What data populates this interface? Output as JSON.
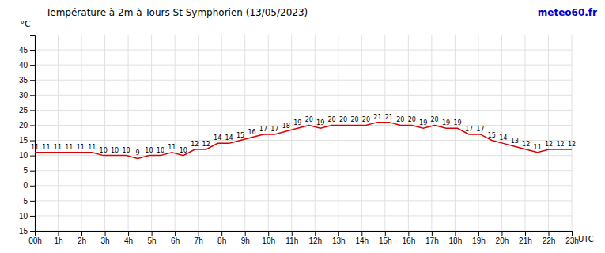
{
  "chart_data": {
    "type": "line",
    "title": "Température à 2m à Tours St Symphorien (13/05/2023)",
    "ylabel": "°C",
    "xlabel": "UTC",
    "annotations": [
      {
        "text": "meteo60.fr",
        "color": "#0000cc"
      }
    ],
    "color": "#dd0000",
    "x": [
      0,
      0.489362,
      0.978723,
      1.468085,
      1.957447,
      2.446809,
      2.93617,
      3.425532,
      3.914894,
      4.404255,
      4.893617,
      5.382979,
      5.87234,
      6.361702,
      6.851064,
      7.340426,
      7.829787,
      8.319149,
      8.808511,
      9.297872,
      9.787234,
      10.276596,
      10.765957,
      11.255319,
      11.744681,
      12.234043,
      12.723404,
      13.212766,
      13.702128,
      14.191489,
      14.680851,
      15.170213,
      15.659574,
      16.148936,
      16.638298,
      17.12766,
      17.617021,
      18.106383,
      18.595745,
      19.085106,
      19.574468,
      20.06383,
      20.553191,
      21.042553,
      21.531915,
      22.021277,
      22.510638,
      23
    ],
    "values": [
      11,
      11,
      11,
      11,
      11,
      11,
      10,
      10,
      10,
      9,
      10,
      10,
      11,
      10,
      12,
      12,
      14,
      14,
      15,
      16,
      17,
      17,
      18,
      19,
      20,
      19,
      20,
      20,
      20,
      20,
      21,
      21,
      20,
      20,
      19,
      20,
      19,
      19,
      17,
      17,
      15,
      14,
      13,
      12,
      11,
      12,
      12,
      12
    ],
    "data_labels": true,
    "xlim": [
      0,
      23
    ],
    "xticks": [
      {
        "value": 0,
        "label": "00h"
      },
      {
        "value": 1,
        "label": "1h"
      },
      {
        "value": 2,
        "label": "2h"
      },
      {
        "value": 3,
        "label": "3h"
      },
      {
        "value": 4,
        "label": "4h"
      },
      {
        "value": 5,
        "label": "5h"
      },
      {
        "value": 6,
        "label": "6h"
      },
      {
        "value": 7,
        "label": "7h"
      },
      {
        "value": 8,
        "label": "8h"
      },
      {
        "value": 9,
        "label": "9h"
      },
      {
        "value": 10,
        "label": "10h"
      },
      {
        "value": 11,
        "label": "11h"
      },
      {
        "value": 12,
        "label": "12h"
      },
      {
        "value": 13,
        "label": "13h"
      },
      {
        "value": 14,
        "label": "14h"
      },
      {
        "value": 15,
        "label": "15h"
      },
      {
        "value": 16,
        "label": "16h"
      },
      {
        "value": 17,
        "label": "17h"
      },
      {
        "value": 18,
        "label": "18h"
      },
      {
        "value": 19,
        "label": "19h"
      },
      {
        "value": 20,
        "label": "20h"
      },
      {
        "value": 21,
        "label": "21h"
      },
      {
        "value": 22,
        "label": "22h"
      },
      {
        "value": 23,
        "label": "23h"
      }
    ],
    "ylim": [
      -15,
      50
    ],
    "yticks": [
      -15,
      -10,
      -5,
      0,
      5,
      10,
      15,
      20,
      25,
      30,
      35,
      40,
      45
    ],
    "grid": true
  }
}
